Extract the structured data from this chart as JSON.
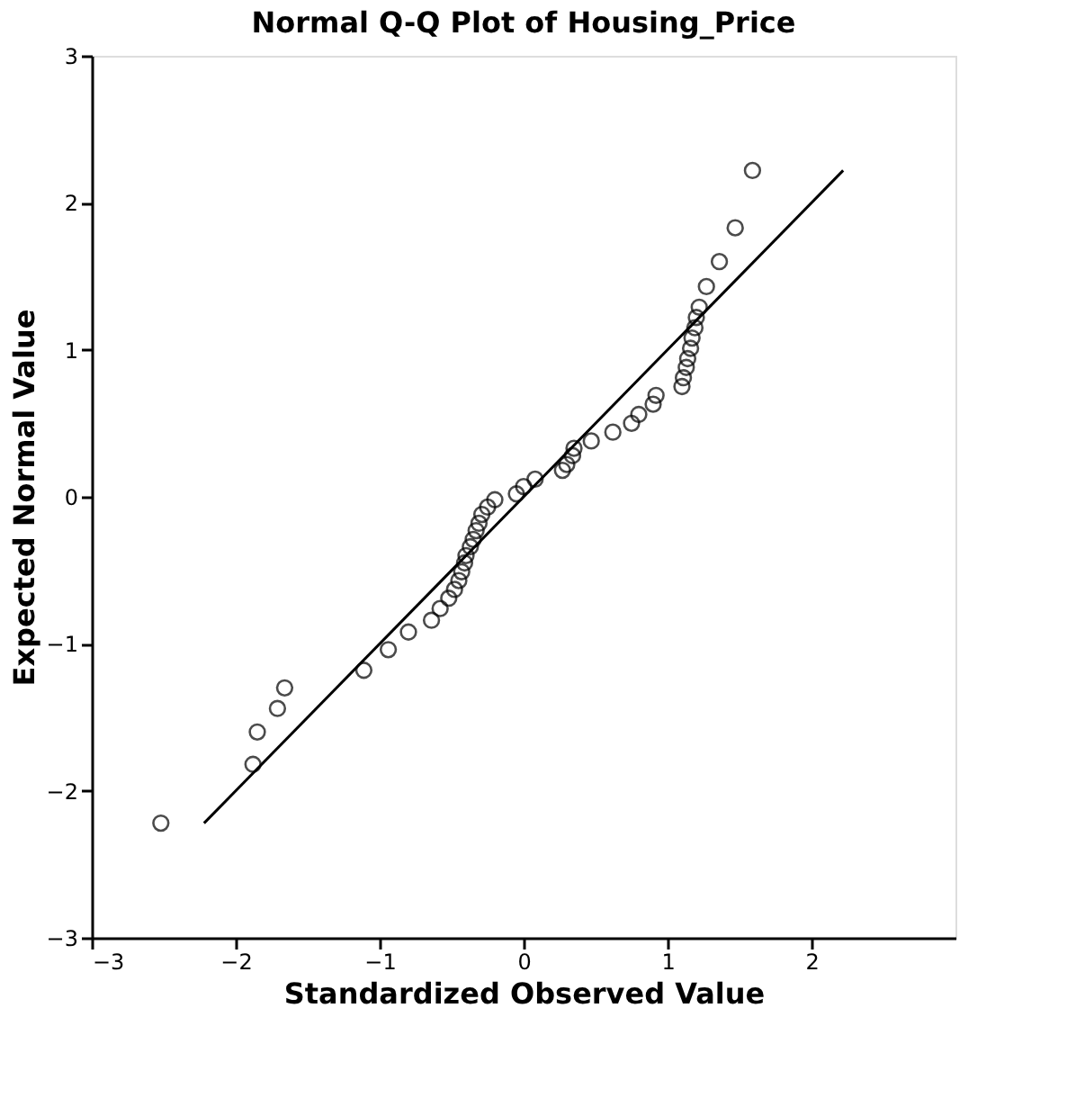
{
  "chart_data": {
    "type": "scatter",
    "title": "Normal Q-Q Plot of Housing_Price",
    "xlabel": "Standardized Observed Value",
    "ylabel": "Expected Normal Value",
    "xlim": [
      -3,
      3
    ],
    "ylim": [
      -3,
      3
    ],
    "xticks": [
      -3,
      -2,
      -1,
      0,
      1,
      2
    ],
    "yticks": [
      -3,
      -2,
      -1,
      0,
      1,
      2,
      3
    ],
    "grid": false,
    "series": [
      {
        "type": "scatter",
        "marker": "circle",
        "color": "#000000",
        "x": [
          -2.52,
          -1.88,
          -1.85,
          -1.71,
          -1.66,
          -1.11,
          -0.94,
          -0.8,
          -0.64,
          -0.58,
          -0.52,
          -0.48,
          -0.45,
          -0.43,
          -0.41,
          -0.4,
          -0.37,
          -0.35,
          -0.33,
          -0.31,
          -0.29,
          -0.25,
          -0.2,
          -0.05,
          0.0,
          0.08,
          0.27,
          0.3,
          0.34,
          0.35,
          0.47,
          0.62,
          0.75,
          0.8,
          0.9,
          0.92,
          1.1,
          1.11,
          1.13,
          1.14,
          1.16,
          1.17,
          1.19,
          1.2,
          1.22,
          1.27,
          1.36,
          1.47,
          1.59
        ],
        "values": [
          -2.22,
          -1.82,
          -1.6,
          -1.44,
          -1.3,
          -1.18,
          -1.04,
          -0.92,
          -0.84,
          -0.76,
          -0.69,
          -0.63,
          -0.57,
          -0.51,
          -0.45,
          -0.4,
          -0.34,
          -0.29,
          -0.23,
          -0.18,
          -0.12,
          -0.07,
          -0.02,
          0.02,
          0.07,
          0.12,
          0.18,
          0.22,
          0.28,
          0.33,
          0.38,
          0.44,
          0.5,
          0.56,
          0.63,
          0.69,
          0.75,
          0.81,
          0.88,
          0.94,
          1.01,
          1.08,
          1.15,
          1.22,
          1.29,
          1.43,
          1.6,
          1.83,
          2.22
        ]
      },
      {
        "type": "line",
        "color": "#000000",
        "x": [
          -2.22,
          2.22
        ],
        "values": [
          -2.22,
          2.22
        ]
      }
    ]
  }
}
